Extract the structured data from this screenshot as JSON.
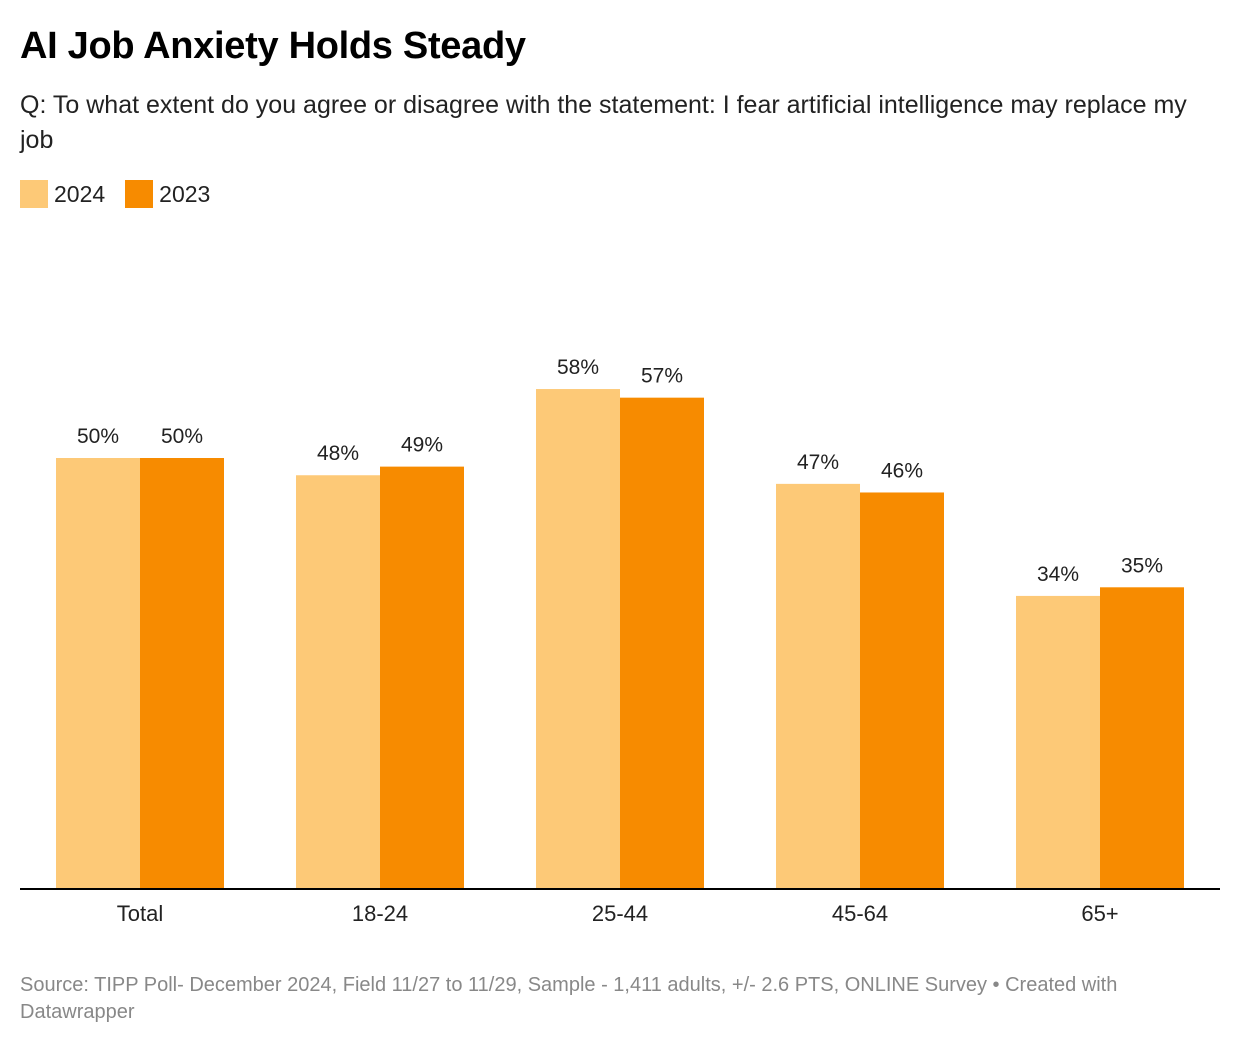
{
  "header": {
    "title": "AI Job Anxiety Holds Steady",
    "subtitle": "Q: To what extent do you agree or disagree with the statement: I fear artificial intelligence may replace my job"
  },
  "legend": [
    {
      "label": "2024",
      "color": "#fdc977"
    },
    {
      "label": "2023",
      "color": "#f78b00"
    }
  ],
  "chart_data": {
    "type": "bar",
    "title": "AI Job Anxiety Holds Steady",
    "xlabel": "",
    "ylabel": "",
    "ylim": [
      0,
      60
    ],
    "categories": [
      "Total",
      "18-24",
      "25-44",
      "45-64",
      "65+"
    ],
    "series": [
      {
        "name": "2024",
        "color": "#fdc977",
        "values": [
          50,
          48,
          58,
          47,
          34
        ],
        "labels": [
          "50%",
          "48%",
          "58%",
          "47%",
          "34%"
        ]
      },
      {
        "name": "2023",
        "color": "#f78b00",
        "values": [
          50,
          49,
          57,
          46,
          35
        ],
        "labels": [
          "50%",
          "49%",
          "57%",
          "46%",
          "35%"
        ]
      }
    ]
  },
  "footer": {
    "source": "Source: TIPP Poll- December 2024, Field 11/27 to 11/29, Sample - 1,411 adults, +/- 2.6 PTS, ONLINE Survey • Created with Datawrapper"
  }
}
